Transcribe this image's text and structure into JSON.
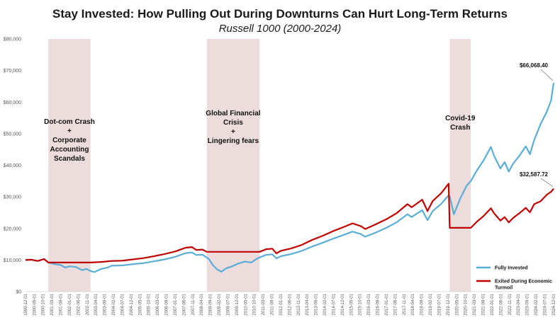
{
  "chart_data": {
    "type": "line",
    "title": "Stay Invested: How Pulling Out During Downturns Can Hurt Long-Term Returns",
    "subtitle": "Russell 1000 (2000-2024)",
    "ylim": [
      0,
      80000
    ],
    "y_ticks": [
      "$0",
      "$10,000",
      "$20,000",
      "$30,000",
      "$40,000",
      "$50,000",
      "$60,000",
      "$70,000",
      "$80,000"
    ],
    "x_ticks": [
      "1999-12-01",
      "2000-05-01",
      "2000-10-01",
      "2001-03-01",
      "2001-08-01",
      "2002-01-01",
      "2002-06-01",
      "2002-11-01",
      "2003-04-01",
      "2003-09-01",
      "2004-02-01",
      "2004-07-01",
      "2004-12-01",
      "2005-05-01",
      "2005-10-01",
      "2006-03-01",
      "2006-08-01",
      "2007-01-01",
      "2007-06-01",
      "2007-11-01",
      "2008-04-01",
      "2008-09-01",
      "2009-02-01",
      "2009-07-01",
      "2009-12-01",
      "2010-05-01",
      "2010-10-01",
      "2011-03-01",
      "2011-08-01",
      "2012-01-01",
      "2012-06-01",
      "2012-11-01",
      "2013-04-01",
      "2013-09-01",
      "2014-02-01",
      "2014-07-01",
      "2014-12-01",
      "2015-05-01",
      "2015-10-01",
      "2016-03-01",
      "2016-08-01",
      "2017-01-01",
      "2017-06-01",
      "2017-11-01",
      "2018-04-01",
      "2018-09-01",
      "2019-02-01",
      "2019-07-01",
      "2019-12-01",
      "2020-05-01",
      "2020-10-01",
      "2021-03-01",
      "2021-08-01",
      "2022-01-01",
      "2022-06-01",
      "2022-11-01",
      "2023-04-01",
      "2023-09-01",
      "2024-02-01",
      "2024-07-01",
      "2024-12-01"
    ],
    "shaded_periods": [
      {
        "start": 2001.0,
        "end": 2003.0,
        "label": [
          "Dot-com Crash",
          "+",
          "Corporate",
          "Accounting",
          "Scandals"
        ]
      },
      {
        "start": 2008.5,
        "end": 2011.0,
        "label": [
          "Global Financial",
          "Crisis",
          "+",
          "Lingering fears"
        ]
      },
      {
        "start": 2020.0,
        "end": 2021.0,
        "label": [
          "Covid-19",
          "Crash"
        ]
      }
    ],
    "series": [
      {
        "name": "Fully Invested",
        "color": "#5aaed6",
        "end_label": "$66,068.40",
        "points": [
          [
            1999.92,
            10000
          ],
          [
            2000.2,
            10100
          ],
          [
            2000.5,
            9700
          ],
          [
            2000.8,
            10300
          ],
          [
            2001.0,
            9200
          ],
          [
            2001.3,
            8700
          ],
          [
            2001.6,
            8400
          ],
          [
            2001.8,
            7600
          ],
          [
            2002.0,
            8000
          ],
          [
            2002.3,
            7800
          ],
          [
            2002.6,
            6800
          ],
          [
            2002.8,
            7200
          ],
          [
            2003.0,
            6500
          ],
          [
            2003.2,
            6200
          ],
          [
            2003.5,
            7200
          ],
          [
            2003.8,
            7600
          ],
          [
            2004.0,
            8200
          ],
          [
            2004.5,
            8300
          ],
          [
            2005.0,
            8700
          ],
          [
            2005.5,
            9000
          ],
          [
            2006.0,
            9600
          ],
          [
            2006.5,
            10200
          ],
          [
            2007.0,
            11000
          ],
          [
            2007.5,
            12200
          ],
          [
            2007.8,
            12400
          ],
          [
            2008.0,
            11600
          ],
          [
            2008.3,
            11700
          ],
          [
            2008.6,
            10300
          ],
          [
            2008.8,
            8300
          ],
          [
            2009.0,
            7000
          ],
          [
            2009.2,
            6300
          ],
          [
            2009.4,
            7300
          ],
          [
            2009.7,
            8000
          ],
          [
            2010.0,
            8900
          ],
          [
            2010.3,
            9500
          ],
          [
            2010.6,
            9200
          ],
          [
            2010.9,
            10500
          ],
          [
            2011.0,
            10800
          ],
          [
            2011.3,
            11600
          ],
          [
            2011.6,
            11800
          ],
          [
            2011.8,
            10500
          ],
          [
            2012.0,
            11200
          ],
          [
            2012.5,
            11900
          ],
          [
            2013.0,
            12900
          ],
          [
            2013.5,
            14300
          ],
          [
            2014.0,
            15500
          ],
          [
            2014.5,
            16800
          ],
          [
            2015.0,
            18000
          ],
          [
            2015.4,
            19000
          ],
          [
            2015.8,
            18200
          ],
          [
            2016.0,
            17400
          ],
          [
            2016.5,
            18700
          ],
          [
            2017.0,
            20200
          ],
          [
            2017.5,
            22000
          ],
          [
            2018.0,
            24500
          ],
          [
            2018.2,
            23600
          ],
          [
            2018.7,
            25800
          ],
          [
            2018.95,
            22600
          ],
          [
            2019.2,
            25500
          ],
          [
            2019.6,
            27800
          ],
          [
            2019.95,
            30500
          ],
          [
            2020.0,
            30200
          ],
          [
            2020.2,
            24500
          ],
          [
            2020.5,
            29500
          ],
          [
            2020.8,
            33500
          ],
          [
            2021.0,
            35000
          ],
          [
            2021.3,
            38500
          ],
          [
            2021.6,
            41500
          ],
          [
            2021.95,
            45800
          ],
          [
            2022.1,
            43000
          ],
          [
            2022.4,
            39000
          ],
          [
            2022.6,
            41000
          ],
          [
            2022.8,
            38000
          ],
          [
            2023.0,
            40500
          ],
          [
            2023.3,
            43000
          ],
          [
            2023.6,
            46000
          ],
          [
            2023.8,
            43500
          ],
          [
            2024.0,
            48000
          ],
          [
            2024.3,
            53000
          ],
          [
            2024.6,
            57000
          ],
          [
            2024.8,
            60500
          ],
          [
            2024.92,
            66068.4
          ]
        ]
      },
      {
        "name": "Exited During Economic Turmoil",
        "color": "#c00000",
        "end_label": "$32,587.72",
        "points": [
          [
            1999.92,
            10000
          ],
          [
            2000.2,
            10100
          ],
          [
            2000.5,
            9700
          ],
          [
            2000.8,
            10300
          ],
          [
            2001.0,
            9200
          ],
          [
            2003.0,
            9200
          ],
          [
            2003.5,
            9400
          ],
          [
            2004.0,
            9700
          ],
          [
            2004.5,
            9800
          ],
          [
            2005.0,
            10200
          ],
          [
            2005.5,
            10600
          ],
          [
            2006.0,
            11200
          ],
          [
            2006.5,
            11900
          ],
          [
            2007.0,
            12700
          ],
          [
            2007.5,
            13900
          ],
          [
            2007.8,
            14100
          ],
          [
            2008.0,
            13200
          ],
          [
            2008.3,
            13300
          ],
          [
            2008.5,
            12600
          ],
          [
            2011.0,
            12600
          ],
          [
            2011.3,
            13400
          ],
          [
            2011.6,
            13600
          ],
          [
            2011.8,
            12100
          ],
          [
            2012.0,
            12900
          ],
          [
            2012.5,
            13700
          ],
          [
            2013.0,
            14800
          ],
          [
            2013.5,
            16400
          ],
          [
            2014.0,
            17700
          ],
          [
            2014.5,
            19200
          ],
          [
            2015.0,
            20500
          ],
          [
            2015.4,
            21600
          ],
          [
            2015.8,
            20700
          ],
          [
            2016.0,
            19800
          ],
          [
            2016.5,
            21300
          ],
          [
            2017.0,
            22900
          ],
          [
            2017.5,
            24900
          ],
          [
            2018.0,
            27700
          ],
          [
            2018.2,
            26700
          ],
          [
            2018.7,
            29100
          ],
          [
            2018.95,
            25500
          ],
          [
            2019.2,
            28700
          ],
          [
            2019.6,
            31200
          ],
          [
            2019.95,
            34200
          ],
          [
            2020.0,
            20200
          ],
          [
            2021.0,
            20200
          ],
          [
            2021.3,
            22200
          ],
          [
            2021.6,
            23900
          ],
          [
            2021.95,
            26400
          ],
          [
            2022.1,
            24800
          ],
          [
            2022.4,
            22500
          ],
          [
            2022.6,
            23600
          ],
          [
            2022.8,
            21900
          ],
          [
            2023.0,
            23300
          ],
          [
            2023.3,
            24800
          ],
          [
            2023.6,
            26500
          ],
          [
            2023.8,
            25100
          ],
          [
            2024.0,
            27700
          ],
          [
            2024.3,
            28600
          ],
          [
            2024.6,
            30700
          ],
          [
            2024.8,
            31600
          ],
          [
            2024.92,
            32587.72
          ]
        ]
      }
    ]
  }
}
